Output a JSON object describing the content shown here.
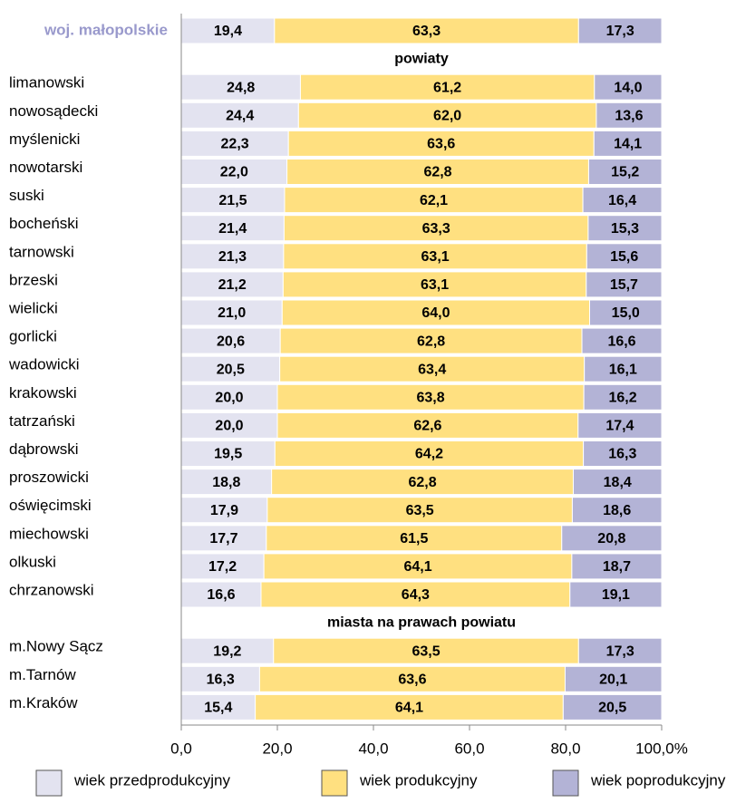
{
  "chart_data": {
    "type": "stacked-bar-horizontal",
    "categories": [
      "woj. małopolskie",
      "limanowski",
      "nowosądecki",
      "myślenicki",
      "nowotarski",
      "suski",
      "bocheński",
      "tarnowski",
      "brzeski",
      "wielicki",
      "gorlicki",
      "wadowicki",
      "krakowski",
      "tatrzański",
      "dąbrowski",
      "proszowicki",
      "oświęcimski",
      "miechowski",
      "olkuski",
      "chrzanowski",
      "m.Nowy Sącz",
      "m.Tarnów",
      "m.Kraków"
    ],
    "section_labels": [
      "powiaty",
      "miasta na prawach powiatu"
    ],
    "series": [
      {
        "name": "wiek przedprodukcyjny",
        "color": "#e3e3f0",
        "values": [
          19.4,
          24.8,
          24.4,
          22.3,
          22.0,
          21.5,
          21.4,
          21.3,
          21.2,
          21.0,
          20.6,
          20.5,
          20.0,
          20.0,
          19.5,
          18.8,
          17.9,
          17.7,
          17.2,
          16.6,
          19.2,
          16.3,
          15.4
        ],
        "value_labels": [
          "19,4",
          "24,8",
          "24,4",
          "22,3",
          "22,0",
          "21,5",
          "21,4",
          "21,3",
          "21,2",
          "21,0",
          "20,6",
          "20,5",
          "20,0",
          "20,0",
          "19,5",
          "18,8",
          "17,9",
          "17,7",
          "17,2",
          "16,6",
          "19,2",
          "16,3",
          "15,4"
        ]
      },
      {
        "name": "wiek produkcyjny",
        "color": "#ffe080",
        "values": [
          63.3,
          61.2,
          62.0,
          63.6,
          62.8,
          62.1,
          63.3,
          63.1,
          63.1,
          64.0,
          62.8,
          63.4,
          63.8,
          62.6,
          64.2,
          62.8,
          63.5,
          61.5,
          64.1,
          64.3,
          63.5,
          63.6,
          64.1
        ],
        "value_labels": [
          "63,3",
          "61,2",
          "62,0",
          "63,6",
          "62,8",
          "62,1",
          "63,3",
          "63,1",
          "63,1",
          "64,0",
          "62,8",
          "63,4",
          "63,8",
          "62,6",
          "64,2",
          "62,8",
          "63,5",
          "61,5",
          "64,1",
          "64,3",
          "63,5",
          "63,6",
          "64,1"
        ]
      },
      {
        "name": "wiek poprodukcyjny",
        "color": "#b3b3d6",
        "values": [
          17.3,
          14.0,
          13.6,
          14.1,
          15.2,
          16.4,
          15.3,
          15.6,
          15.7,
          15.0,
          16.6,
          16.1,
          16.2,
          17.4,
          16.3,
          18.4,
          18.6,
          20.8,
          18.7,
          19.1,
          17.3,
          20.1,
          20.5
        ],
        "value_labels": [
          "17,3",
          "14,0",
          "13,6",
          "14,1",
          "15,2",
          "16,4",
          "15,3",
          "15,6",
          "15,7",
          "15,0",
          "16,6",
          "16,1",
          "16,2",
          "17,4",
          "16,3",
          "18,4",
          "18,6",
          "20,8",
          "18,7",
          "19,1",
          "17,3",
          "20,1",
          "20,5"
        ]
      }
    ],
    "xlim": [
      0,
      100
    ],
    "xticks": [
      {
        "value": 0,
        "label": "0,0"
      },
      {
        "value": 20,
        "label": "20,0"
      },
      {
        "value": 40,
        "label": "40,0"
      },
      {
        "value": 60,
        "label": "60,0"
      },
      {
        "value": 80,
        "label": "80,0"
      },
      {
        "value": 100,
        "label": "100,0%"
      }
    ]
  }
}
